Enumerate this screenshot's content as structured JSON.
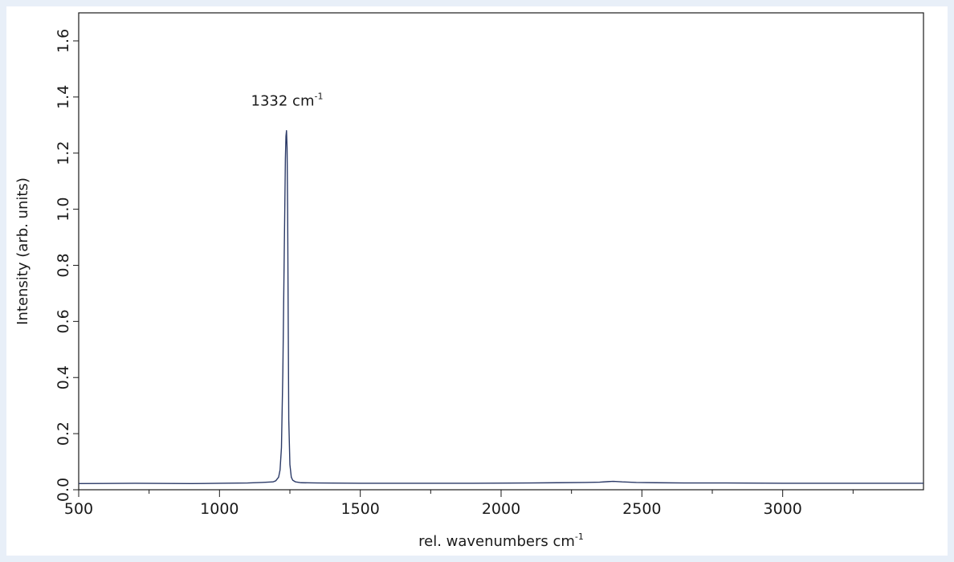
{
  "chart_data": {
    "type": "line",
    "title": "",
    "xlabel": "rel. wavenumbers cm",
    "xlabel_superscript": "-1",
    "ylabel": "Intensity  (arb. units)",
    "xlim": [
      500,
      3500
    ],
    "ylim": [
      0,
      1.7
    ],
    "x_ticks": [
      500,
      1000,
      1500,
      2000,
      2500,
      3000
    ],
    "x_tick_labels": [
      "500",
      "1000",
      "1500",
      "2000",
      "2500",
      "3000"
    ],
    "x_minor_ticks": [
      750,
      1250,
      1750,
      2250,
      2750,
      3250
    ],
    "y_ticks": [
      0.0,
      0.2,
      0.4,
      0.6,
      0.8,
      1.0,
      1.2,
      1.4,
      1.6
    ],
    "y_tick_labels": [
      "0.0",
      "0.2",
      "0.4",
      "0.6",
      "0.8",
      "1.0",
      "1.2",
      "1.4",
      "1.6"
    ],
    "grid": false,
    "legend": "none",
    "series": [
      {
        "color": "#2b3a67",
        "x": [
          500,
          700,
          900,
          1000,
          1100,
          1150,
          1190,
          1200,
          1210,
          1215,
          1220,
          1225,
          1230,
          1234,
          1236,
          1238,
          1240,
          1242,
          1244,
          1246,
          1250,
          1255,
          1260,
          1270,
          1290,
          1350,
          1500,
          1700,
          1900,
          2100,
          2200,
          2300,
          2350,
          2380,
          2400,
          2430,
          2480,
          2550,
          2650,
          2800,
          3000,
          3200,
          3500
        ],
        "y": [
          0.022,
          0.023,
          0.022,
          0.023,
          0.024,
          0.026,
          0.028,
          0.032,
          0.045,
          0.07,
          0.15,
          0.42,
          0.85,
          1.18,
          1.26,
          1.28,
          1.22,
          1.0,
          0.6,
          0.25,
          0.09,
          0.045,
          0.034,
          0.028,
          0.025,
          0.024,
          0.023,
          0.023,
          0.023,
          0.024,
          0.025,
          0.026,
          0.027,
          0.029,
          0.03,
          0.028,
          0.026,
          0.025,
          0.024,
          0.024,
          0.023,
          0.023,
          0.023
        ]
      }
    ],
    "annotations": [
      {
        "text": "1332 cm",
        "superscript": "-1",
        "x": 1240,
        "y": 1.37
      }
    ]
  }
}
